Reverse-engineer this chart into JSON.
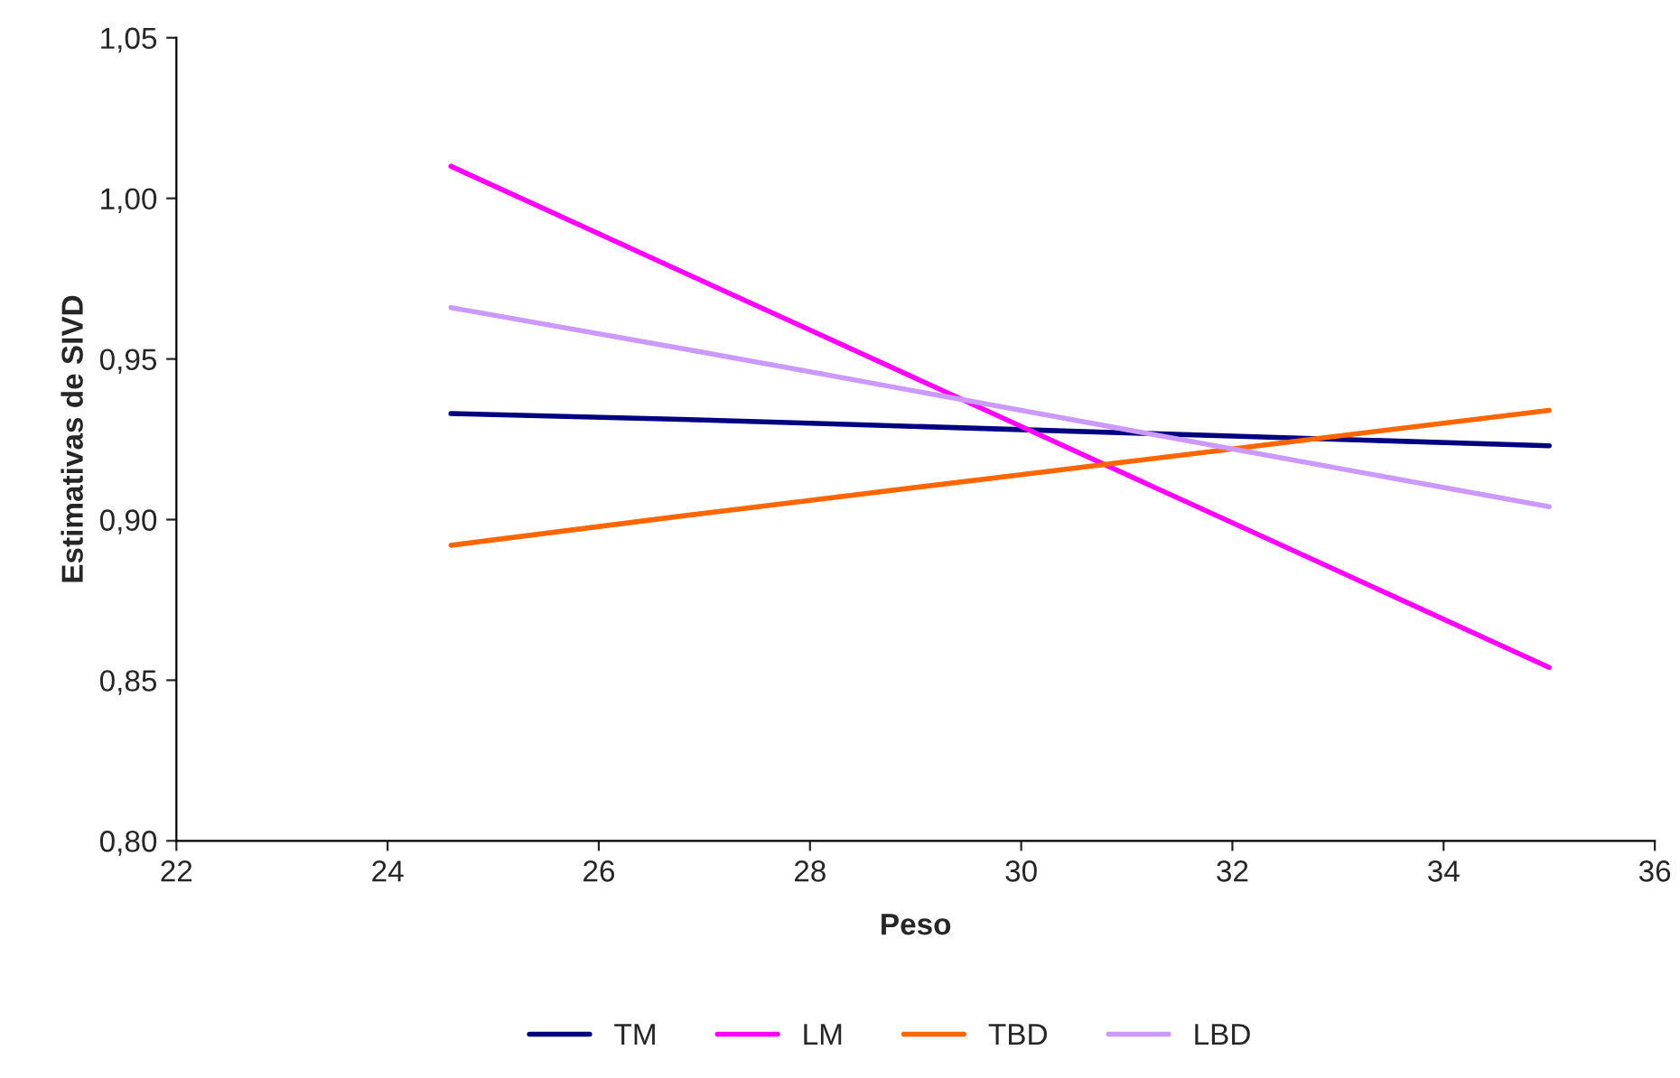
{
  "chart_data": {
    "type": "line",
    "xlabel": "Peso",
    "ylabel": "Estimativas de SIVD",
    "x": [
      24.6,
      27,
      28,
      30,
      32,
      35
    ],
    "series": [
      {
        "name": "TM",
        "color": "#000080",
        "values": [
          0.933,
          0.931,
          0.93,
          0.928,
          0.926,
          0.923
        ]
      },
      {
        "name": "LM",
        "color": "#ff00ff",
        "values": [
          1.01,
          0.974,
          0.959,
          0.929,
          0.899,
          0.854
        ]
      },
      {
        "name": "TBD",
        "color": "#ff6600",
        "values": [
          0.892,
          0.902,
          0.906,
          0.914,
          0.922,
          0.934
        ]
      },
      {
        "name": "LBD",
        "color": "#cc99ff",
        "values": [
          0.966,
          0.952,
          0.946,
          0.934,
          0.922,
          0.904
        ]
      }
    ],
    "xlim": [
      22,
      36
    ],
    "xticks": [
      22,
      24,
      26,
      28,
      30,
      32,
      34,
      36
    ],
    "ylim": [
      0.8,
      1.05
    ],
    "yticks": [
      {
        "value": 0.8,
        "label": "0,80"
      },
      {
        "value": 0.85,
        "label": "0,85"
      },
      {
        "value": 0.9,
        "label": "0,90"
      },
      {
        "value": 0.95,
        "label": "0,95"
      },
      {
        "value": 1.0,
        "label": "1,00"
      },
      {
        "value": 1.05,
        "label": "1,05"
      }
    ],
    "grid": false,
    "legend": "bottom",
    "marker": "none",
    "line_style": "solid"
  }
}
